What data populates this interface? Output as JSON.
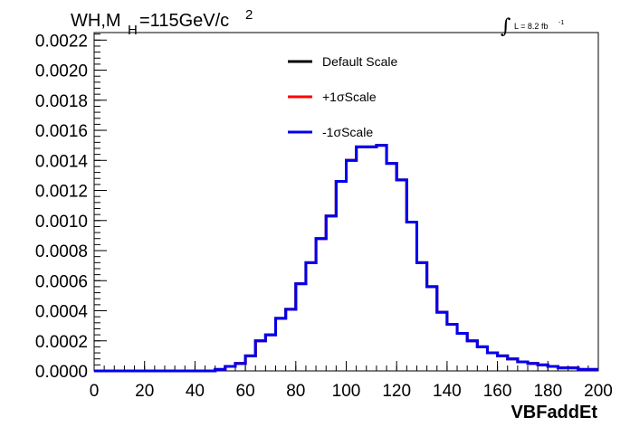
{
  "chart_data": {
    "type": "line",
    "title": {
      "main": "WH,M",
      "subscript": "H",
      "rest": "=115GeV/c",
      "superscript": "2"
    },
    "annotation": {
      "integral": "∫",
      "text": "L = 8.2 fb",
      "superscript": "-1"
    },
    "xlabel": "VBFaddEt",
    "ylabel": "",
    "xlim": [
      0,
      200
    ],
    "ylim": [
      0,
      0.00225
    ],
    "x_ticks": [
      "0",
      "20",
      "40",
      "60",
      "80",
      "100",
      "120",
      "140",
      "160",
      "180",
      "200"
    ],
    "y_ticks": [
      "0.0000",
      "0.0002",
      "0.0004",
      "0.0006",
      "0.0008",
      "0.0010",
      "0.0012",
      "0.0014",
      "0.0016",
      "0.0018",
      "0.0020",
      "0.0022"
    ],
    "grid": false,
    "legend_position": "top-center",
    "bin_width": 4,
    "bin_start": 0,
    "series": [
      {
        "name": "Default Scale",
        "color": "#000000",
        "values": [
          0,
          0,
          0,
          0,
          0,
          0,
          0,
          0,
          0,
          0,
          0,
          0,
          1e-05,
          3e-05,
          5e-05,
          0.0001,
          0.0002,
          0.00024,
          0.00035,
          0.00041,
          0.00058,
          0.00072,
          0.00088,
          0.00103,
          0.00126,
          0.0014,
          0.00149,
          0.00149,
          0.0015,
          0.00138,
          0.00127,
          0.00099,
          0.00072,
          0.00056,
          0.00039,
          0.00031,
          0.00025,
          0.0002,
          0.00016,
          0.00012,
          0.0001,
          8e-05,
          6e-05,
          5e-05,
          4e-05,
          3e-05,
          2e-05,
          2e-05,
          1e-05,
          1e-05
        ]
      },
      {
        "name": "+1σScale",
        "color": "#ff0000",
        "values": [
          0,
          0,
          0,
          0,
          0,
          0,
          0,
          0,
          0,
          0,
          0,
          0,
          1e-05,
          3e-05,
          5e-05,
          0.0001,
          0.0002,
          0.00024,
          0.00035,
          0.00041,
          0.00058,
          0.00072,
          0.00088,
          0.00103,
          0.00126,
          0.0014,
          0.00149,
          0.00149,
          0.0015,
          0.00138,
          0.00127,
          0.00099,
          0.00072,
          0.00056,
          0.00039,
          0.00031,
          0.00025,
          0.0002,
          0.00016,
          0.00012,
          0.0001,
          8e-05,
          6e-05,
          5e-05,
          4e-05,
          3e-05,
          2e-05,
          2e-05,
          1e-05,
          1e-05
        ]
      },
      {
        "name": "-1σScale",
        "color": "#0000ee",
        "values": [
          0,
          0,
          0,
          0,
          0,
          0,
          0,
          0,
          0,
          0,
          0,
          0,
          1e-05,
          3e-05,
          5e-05,
          0.0001,
          0.0002,
          0.00024,
          0.00035,
          0.00041,
          0.00058,
          0.00072,
          0.00088,
          0.00103,
          0.00126,
          0.0014,
          0.00149,
          0.00149,
          0.0015,
          0.00138,
          0.00127,
          0.00099,
          0.00072,
          0.00056,
          0.00039,
          0.00031,
          0.00025,
          0.0002,
          0.00016,
          0.00012,
          0.0001,
          8e-05,
          6e-05,
          5e-05,
          4e-05,
          3e-05,
          2e-05,
          2e-05,
          1e-05,
          1e-05
        ]
      }
    ]
  }
}
